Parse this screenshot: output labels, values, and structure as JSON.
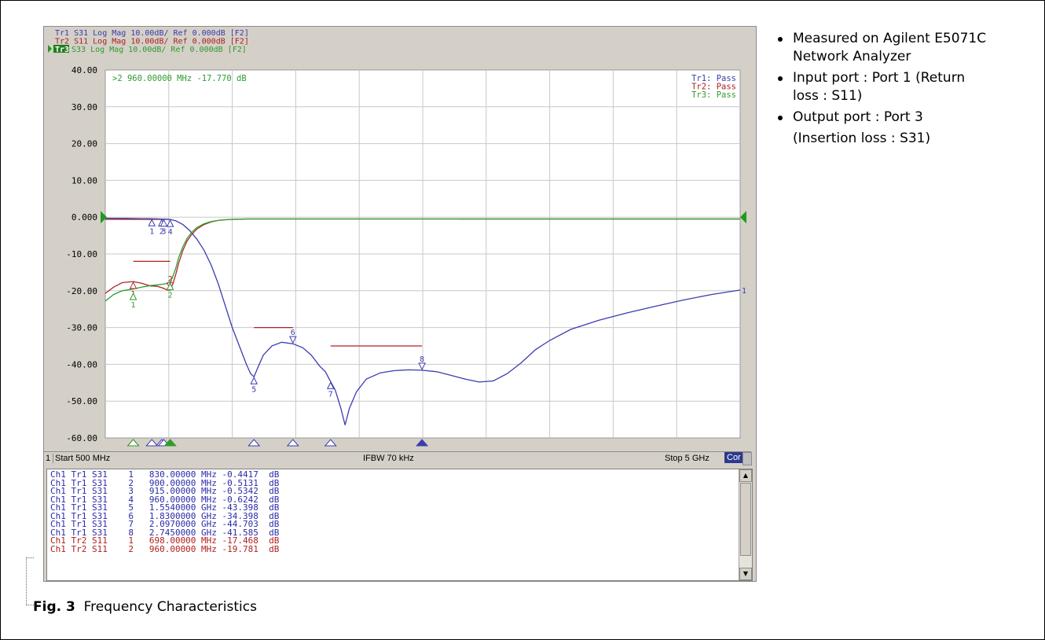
{
  "chart_data": {
    "type": "line",
    "title": "",
    "trace_header": [
      {
        "name": "Tr1",
        "text": "Tr1 S31 Log Mag 10.00dB/ Ref 0.000dB [F2]",
        "color": "#3a3aa8"
      },
      {
        "name": "Tr2",
        "text": "Tr2 S11 Log Mag 10.00dB/ Ref 0.000dB [F2]",
        "color": "#a82020"
      },
      {
        "name": "Tr3",
        "text": "S33 Log Mag 10.00dB/ Ref 0.000dB [F2]",
        "tag": "Tr3",
        "color": "#2e9a2e"
      }
    ],
    "active_marker_readout": ">2   960.00000 MHz -17.770 dB",
    "pass_status": [
      {
        "text": "Tr1: Pass",
        "color": "#3a3aa8"
      },
      {
        "text": "Tr2: Pass",
        "color": "#a82020"
      },
      {
        "text": "Tr3: Pass",
        "color": "#2e9a2e"
      }
    ],
    "xlim": [
      500,
      5000
    ],
    "x_unit": "MHz",
    "ylim": [
      -60,
      40
    ],
    "y_ticks": [
      "40.00",
      "30.00",
      "20.00",
      "10.00",
      "0.000",
      "-10.00",
      "-20.00",
      "-30.00",
      "-40.00",
      "-50.00",
      "-60.00"
    ],
    "grid": true,
    "series": [
      {
        "name": "S31",
        "color": "#3c3cb0",
        "x": [
          500,
          650,
          750,
          800,
          830,
          860,
          900,
          915,
          930,
          960,
          1000,
          1050,
          1100,
          1150,
          1200,
          1250,
          1300,
          1350,
          1400,
          1450,
          1500,
          1530,
          1554,
          1580,
          1620,
          1680,
          1750,
          1830,
          1900,
          1960,
          2020,
          2060,
          2097,
          2130,
          2170,
          2200,
          2230,
          2280,
          2350,
          2450,
          2550,
          2650,
          2745,
          2850,
          2950,
          3050,
          3150,
          3250,
          3350,
          3450,
          3550,
          3650,
          3800,
          4000,
          4200,
          4400,
          4600,
          4800,
          5000
        ],
        "y": [
          -0.3,
          -0.35,
          -0.4,
          -0.42,
          -0.44,
          -0.48,
          -0.51,
          -0.53,
          -0.56,
          -0.62,
          -1.0,
          -2.0,
          -3.7,
          -6.0,
          -9.0,
          -13.0,
          -18.0,
          -24.0,
          -30.0,
          -35.0,
          -40.0,
          -42.5,
          -43.4,
          -41.0,
          -37.5,
          -35.0,
          -34.0,
          -34.4,
          -35.5,
          -37.5,
          -40.5,
          -42.0,
          -44.7,
          -47.0,
          -52.0,
          -56.5,
          -52.0,
          -47.5,
          -44.0,
          -42.3,
          -41.7,
          -41.5,
          -41.6,
          -42.0,
          -43.0,
          -44.0,
          -44.8,
          -44.5,
          -42.5,
          -39.5,
          -36.0,
          -33.5,
          -30.5,
          -28.0,
          -26.0,
          -24.2,
          -22.5,
          -21.0,
          -19.8
        ]
      },
      {
        "name": "S11",
        "color": "#a82a2a",
        "x": [
          500,
          560,
          620,
          698,
          760,
          820,
          870,
          910,
          940,
          960,
          980,
          1000,
          1020,
          1050,
          1080,
          1110,
          1150,
          1200,
          1250,
          1300,
          1350,
          1400,
          1450,
          1500,
          1600,
          1800,
          2200,
          3000,
          4000,
          5000
        ],
        "y": [
          -20.7,
          -19.0,
          -17.8,
          -17.5,
          -18.0,
          -18.7,
          -18.8,
          -19.3,
          -19.8,
          -19.8,
          -18.0,
          -15.5,
          -12.5,
          -9.0,
          -6.5,
          -4.8,
          -3.2,
          -2.0,
          -1.3,
          -0.9,
          -0.7,
          -0.6,
          -0.55,
          -0.5,
          -0.5,
          -0.5,
          -0.5,
          -0.5,
          -0.5,
          -0.5
        ]
      },
      {
        "name": "S33",
        "color": "#2e9e2e",
        "x": [
          500,
          560,
          620,
          700,
          760,
          820,
          870,
          910,
          940,
          960,
          980,
          1000,
          1020,
          1050,
          1080,
          1110,
          1150,
          1200,
          1250,
          1300,
          1350,
          1400,
          1450,
          1500,
          1600,
          1800,
          2200,
          3000,
          4000,
          5000
        ],
        "y": [
          -22.8,
          -21.0,
          -20.0,
          -19.5,
          -19.0,
          -18.6,
          -18.4,
          -18.2,
          -18.0,
          -17.8,
          -16.0,
          -13.8,
          -11.0,
          -8.0,
          -5.8,
          -4.2,
          -2.8,
          -1.8,
          -1.2,
          -0.9,
          -0.7,
          -0.6,
          -0.55,
          -0.5,
          -0.5,
          -0.5,
          -0.5,
          -0.5,
          -0.5,
          -0.5
        ]
      }
    ],
    "limit_lines": [
      {
        "color": "#b02020",
        "x": [
          500,
          960
        ],
        "y": [
          -0.6,
          -0.6
        ]
      },
      {
        "color": "#b02020",
        "x": [
          698,
          960
        ],
        "y": [
          -12,
          -12
        ]
      },
      {
        "color": "#b02020",
        "x": [
          1554,
          1830
        ],
        "y": [
          -30,
          -30
        ]
      },
      {
        "color": "#b02020",
        "x": [
          2097,
          2745
        ],
        "y": [
          -35,
          -35
        ]
      },
      {
        "color": "#b02020",
        "x": [
          3000,
          5000
        ],
        "y": [
          -0.5,
          -0.5
        ]
      }
    ],
    "markers": [
      {
        "label": "1",
        "x": 830,
        "y": -0.4417,
        "color": "#3c3cb0"
      },
      {
        "label": "2",
        "x": 900,
        "y": -0.5131,
        "color": "#3c3cb0"
      },
      {
        "label": "3",
        "x": 915,
        "y": -0.5342,
        "color": "#3c3cb0"
      },
      {
        "label": "4",
        "x": 960,
        "y": -0.6242,
        "color": "#3c3cb0"
      },
      {
        "label": "5",
        "x": 1554,
        "y": -43.398,
        "color": "#3c3cb0"
      },
      {
        "label": "6",
        "x": 1830,
        "y": -34.398,
        "color": "#3c3cb0"
      },
      {
        "label": "7",
        "x": 2097,
        "y": -44.703,
        "color": "#3c3cb0"
      },
      {
        "label": "8",
        "x": 2745,
        "y": -41.585,
        "color": "#3c3cb0"
      },
      {
        "label": "1",
        "x": 698,
        "y": -17.468,
        "color": "#a82a2a"
      },
      {
        "label": "2",
        "x": 960,
        "y": -19.781,
        "color": "#a82a2a"
      },
      {
        "label": "1",
        "x": 698,
        "y": -20.5,
        "color": "#2e9e2e"
      },
      {
        "label": "2",
        "x": 960,
        "y": -17.77,
        "color": "#2e9e2e"
      }
    ],
    "end_label": "1"
  },
  "statusbar": {
    "channel": "1",
    "start": "Start 500 MHz",
    "ifbw": "IFBW 70 kHz",
    "stop": "Stop 5 GHz",
    "cor": "Cor"
  },
  "marker_table": [
    {
      "text": "Ch1 Tr1 S31    1   830.00000 MHz -0.4417  dB",
      "color": "#2b2ba8"
    },
    {
      "text": "Ch1 Tr1 S31    2   900.00000 MHz -0.5131  dB",
      "color": "#2b2ba8"
    },
    {
      "text": "Ch1 Tr1 S31    3   915.00000 MHz -0.5342  dB",
      "color": "#2b2ba8"
    },
    {
      "text": "Ch1 Tr1 S31    4   960.00000 MHz -0.6242  dB",
      "color": "#2b2ba8"
    },
    {
      "text": "Ch1 Tr1 S31    5   1.5540000 GHz -43.398  dB",
      "color": "#2b2ba8"
    },
    {
      "text": "Ch1 Tr1 S31    6   1.8300000 GHz -34.398  dB",
      "color": "#2b2ba8"
    },
    {
      "text": "Ch1 Tr1 S31    7   2.0970000 GHz -44.703  dB",
      "color": "#2b2ba8"
    },
    {
      "text": "Ch1 Tr1 S31    8   2.7450000 GHz -41.585  dB",
      "color": "#2b2ba8"
    },
    {
      "text": "Ch1 Tr2 S11    1   698.00000 MHz -17.468  dB",
      "color": "#b01e1e"
    },
    {
      "text": "Ch1 Tr2 S11    2   960.00000 MHz -19.781  dB",
      "color": "#b01e1e"
    }
  ],
  "notes": {
    "item1_line1": "Measured on Agilent E5071C",
    "item1_line2": "Network Analyzer",
    "item2_line1": "Input port : Port 1 (Return",
    "item2_line2": "loss : S11)",
    "item3_line1": "Output port : Port 3",
    "item3_line2": "(Insertion loss : S31)"
  },
  "caption": {
    "fig": "Fig. 3",
    "text": "Frequency Characteristics"
  }
}
